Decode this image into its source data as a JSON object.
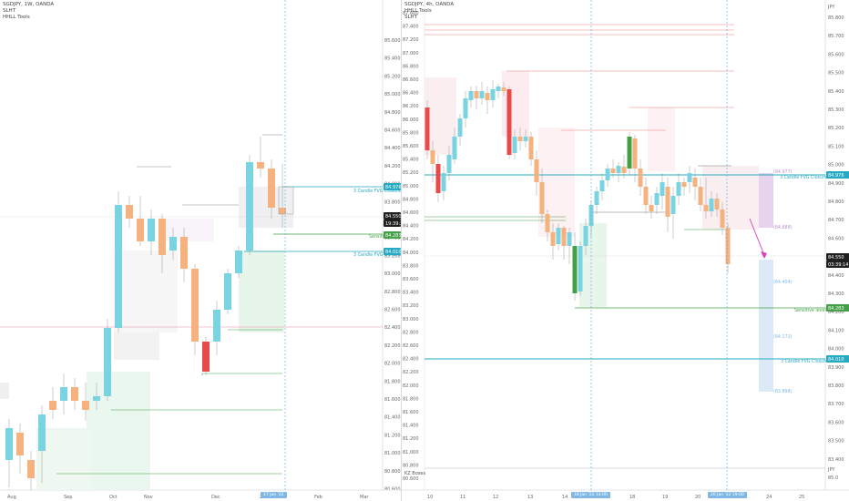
{
  "left_chart": {
    "header": [
      "SGDJPY, 1W, OANDA",
      "SLHT",
      "HHLL Tools"
    ],
    "price_ticks": [
      "85.600",
      "85.400",
      "85.200",
      "85.000",
      "84.800",
      "84.600",
      "84.400",
      "84.200",
      "84.000",
      "83.800",
      "83.600",
      "83.400",
      "83.200",
      "83.000",
      "82.800",
      "82.600",
      "82.400",
      "82.200",
      "82.000",
      "81.800",
      "81.600",
      "81.400",
      "81.200",
      "81.000",
      "80.800",
      "80.600"
    ],
    "time_labels": [
      "Aug",
      "Sep",
      "Oct",
      "Nov",
      "Dec",
      "2022",
      "Feb",
      "Mar"
    ],
    "time_tag": "17 Jan '22",
    "tags": {
      "top_level": "84.976",
      "current_price": "84.550",
      "current_timer": "19:39:23",
      "sensitive": "84.283",
      "lower_fvg": "84.010"
    },
    "annotations": {
      "fvg_upper": "3 Candle FVG Closure",
      "sensitive": "Sensitive level",
      "fvg_lower": "3 Candle FVG Closure"
    },
    "colors": {
      "bull": "#7ad3e0",
      "bear": "#f5b27e",
      "teal_tag": "#26a9c2",
      "green_tag": "#43a047",
      "dark_tag": "#1f1f1f"
    }
  },
  "right_chart": {
    "header": [
      "SGDJPY, 4h, OANDA",
      "HHLL Tools",
      "SLHT"
    ],
    "price_ticks": [
      "87.600",
      "87.400",
      "87.200",
      "87.000",
      "86.800",
      "86.600",
      "86.400",
      "86.200",
      "86.000",
      "85.800",
      "85.600",
      "85.400",
      "85.200",
      "85.000",
      "84.800",
      "84.600",
      "84.400",
      "84.200",
      "84.000",
      "83.800",
      "83.600",
      "83.400",
      "83.200",
      "83.000",
      "82.800",
      "82.600",
      "82.400",
      "82.200",
      "82.000",
      "81.800",
      "81.600",
      "81.400",
      "81.200",
      "81.000",
      "80.800",
      "80.600"
    ],
    "far_ticks": [
      "JPY",
      "85.800",
      "85.700",
      "85.600",
      "85.500",
      "85.400",
      "85.300",
      "85.200",
      "85.100",
      "85.000",
      "84.900",
      "84.800",
      "84.700",
      "84.600",
      "84.500",
      "84.400",
      "84.300",
      "84.200",
      "84.100",
      "84.000",
      "83.900",
      "83.800",
      "83.700",
      "83.600",
      "83.500",
      "83.400"
    ],
    "axis_unit": "JPY",
    "time_labels": [
      "10",
      "11",
      "12",
      "13",
      "14",
      "17",
      "18",
      "19",
      "20",
      "24",
      "25"
    ],
    "time_tags": [
      "18 Jan '22  14:00",
      "20 Jan '22  19:00"
    ],
    "tags": {
      "top_level": "84.976",
      "current_price": "84.550",
      "current_timer": "03:39:14",
      "sensitive": "84.283",
      "lower_fvg": "84.010"
    },
    "annotations": {
      "fvg_upper": "3 Candle FVG Closure",
      "sensitive": "Sensitive level",
      "fvg_lower": "3 Candle FVG Closure",
      "proj1": "(84.977)",
      "proj2": "(84.688)",
      "proj3": "(84.404)",
      "proj4": "(84.172)",
      "proj5": "(83.898)"
    },
    "footer_label": "KZ Boxes",
    "footer_ticks": [
      "JPY",
      "85.0"
    ]
  }
}
